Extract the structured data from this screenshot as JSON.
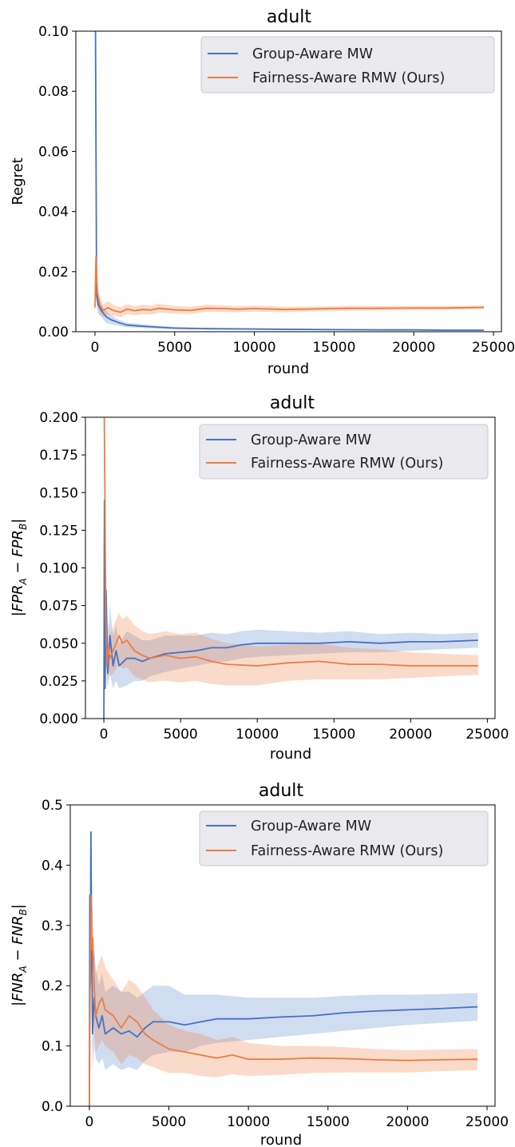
{
  "colors": {
    "series_a": "#4472c4",
    "series_b": "#ed7d41",
    "legend_bg": "#e9e9ee",
    "legend_border": "#c8c8d0"
  },
  "chart_data": [
    {
      "type": "line",
      "title": "adult",
      "xlabel": "round",
      "ylabel": "Regret",
      "xlim": [
        -1200,
        25500
      ],
      "ylim": [
        0,
        0.1
      ],
      "xticks": [
        0,
        5000,
        10000,
        15000,
        20000,
        25000
      ],
      "xtick_labels": [
        "0",
        "5000",
        "10000",
        "15000",
        "20000",
        "25000"
      ],
      "yticks": [
        0,
        0.02,
        0.04,
        0.06,
        0.08,
        0.1
      ],
      "ytick_labels": [
        "0.00",
        "0.02",
        "0.04",
        "0.06",
        "0.08",
        "0.10"
      ],
      "legend_position": "top-right",
      "grid": false,
      "series": [
        {
          "name": "Group-Aware MW",
          "x": [
            0,
            30,
            100,
            200,
            400,
            700,
            1000,
            1500,
            2000,
            3000,
            4000,
            5000,
            7000,
            10000,
            12000,
            15000,
            18000,
            20000,
            22000,
            24400
          ],
          "y": [
            0.1,
            0.1,
            0.012,
            0.009,
            0.007,
            0.005,
            0.004,
            0.003,
            0.0022,
            0.0018,
            0.0015,
            0.0012,
            0.001,
            0.0009,
            0.0008,
            0.0007,
            0.0006,
            0.0006,
            0.0005,
            0.0005
          ],
          "lower": [
            0.1,
            0.08,
            0.008,
            0.006,
            0.005,
            0.003,
            0.0025,
            0.002,
            0.0015,
            0.0012,
            0.001,
            0.0008,
            0.0007,
            0.0006,
            0.0005,
            0.0005,
            0.0004,
            0.0004,
            0.0003,
            0.0003
          ],
          "upper": [
            0.1,
            0.1,
            0.016,
            0.012,
            0.009,
            0.007,
            0.0055,
            0.004,
            0.003,
            0.0025,
            0.002,
            0.0016,
            0.0013,
            0.0012,
            0.0011,
            0.0009,
            0.0008,
            0.0008,
            0.0007,
            0.0007
          ]
        },
        {
          "name": "Fairness-Aware RMW (Ours)",
          "x": [
            0,
            60,
            150,
            300,
            500,
            800,
            1200,
            1600,
            2000,
            2500,
            3000,
            3500,
            4000,
            5000,
            6000,
            7000,
            8000,
            9000,
            10000,
            12000,
            14000,
            16000,
            18000,
            20000,
            22000,
            24400
          ],
          "y": [
            0.008,
            0.025,
            0.013,
            0.009,
            0.007,
            0.008,
            0.007,
            0.0065,
            0.0075,
            0.007,
            0.0074,
            0.0072,
            0.0078,
            0.0073,
            0.0071,
            0.0078,
            0.0077,
            0.0075,
            0.0077,
            0.0074,
            0.0076,
            0.0078,
            0.0078,
            0.0079,
            0.0079,
            0.0081
          ],
          "lower": [
            0.008,
            0.02,
            0.01,
            0.006,
            0.005,
            0.0058,
            0.0052,
            0.0048,
            0.0058,
            0.0055,
            0.0058,
            0.0057,
            0.0063,
            0.006,
            0.0059,
            0.0066,
            0.0066,
            0.0065,
            0.0067,
            0.0065,
            0.0068,
            0.007,
            0.0071,
            0.0072,
            0.0073,
            0.0075
          ],
          "upper": [
            0.008,
            0.026,
            0.016,
            0.012,
            0.009,
            0.0102,
            0.0088,
            0.0082,
            0.0092,
            0.0085,
            0.009,
            0.0087,
            0.0093,
            0.0086,
            0.0083,
            0.009,
            0.0088,
            0.0085,
            0.0087,
            0.0083,
            0.0084,
            0.0086,
            0.0085,
            0.0086,
            0.0085,
            0.0087
          ]
        }
      ]
    },
    {
      "type": "line",
      "title": "adult",
      "xlabel": "round",
      "ylabel": "|FPR_A − FPR_B|",
      "xlim": [
        -1200,
        25500
      ],
      "ylim": [
        0,
        0.2
      ],
      "xticks": [
        0,
        5000,
        10000,
        15000,
        20000,
        25000
      ],
      "xtick_labels": [
        "0",
        "5000",
        "10000",
        "15000",
        "20000",
        "25000"
      ],
      "yticks": [
        0,
        0.025,
        0.05,
        0.075,
        0.1,
        0.125,
        0.15,
        0.175,
        0.2
      ],
      "ytick_labels": [
        "0.000",
        "0.025",
        "0.050",
        "0.075",
        "0.100",
        "0.125",
        "0.150",
        "0.175",
        "0.200"
      ],
      "legend_position": "top-right",
      "grid": false,
      "series": [
        {
          "name": "Group-Aware MW",
          "x": [
            0,
            40,
            80,
            150,
            250,
            400,
            600,
            800,
            1000,
            1500,
            2000,
            2500,
            3000,
            4000,
            5000,
            6000,
            7000,
            8000,
            9000,
            10000,
            12000,
            14000,
            16000,
            18000,
            20000,
            22000,
            24400
          ],
          "y": [
            0,
            0.145,
            0.02,
            0.085,
            0.03,
            0.055,
            0.035,
            0.045,
            0.035,
            0.04,
            0.04,
            0.038,
            0.04,
            0.043,
            0.044,
            0.045,
            0.047,
            0.047,
            0.049,
            0.05,
            0.05,
            0.05,
            0.051,
            0.05,
            0.051,
            0.051,
            0.052
          ],
          "lower": [
            0,
            0.1,
            0.015,
            0.05,
            0.02,
            0.03,
            0.02,
            0.025,
            0.02,
            0.022,
            0.025,
            0.025,
            0.028,
            0.031,
            0.033,
            0.035,
            0.037,
            0.038,
            0.04,
            0.041,
            0.042,
            0.043,
            0.044,
            0.044,
            0.045,
            0.046,
            0.047
          ],
          "upper": [
            0,
            0.15,
            0.03,
            0.1,
            0.045,
            0.075,
            0.055,
            0.062,
            0.05,
            0.058,
            0.055,
            0.052,
            0.052,
            0.055,
            0.055,
            0.055,
            0.057,
            0.056,
            0.058,
            0.059,
            0.058,
            0.057,
            0.058,
            0.056,
            0.057,
            0.056,
            0.057
          ]
        },
        {
          "name": "Fairness-Aware RMW (Ours)",
          "x": [
            0,
            30,
            70,
            120,
            200,
            300,
            400,
            600,
            800,
            1000,
            1200,
            1500,
            2000,
            2500,
            3000,
            3500,
            4000,
            5000,
            6000,
            7000,
            8000,
            10000,
            12000,
            14000,
            16000,
            18000,
            20000,
            22000,
            24400
          ],
          "y": [
            0.2,
            0.2,
            0.15,
            0.07,
            0.035,
            0.048,
            0.04,
            0.045,
            0.05,
            0.055,
            0.05,
            0.052,
            0.045,
            0.042,
            0.04,
            0.041,
            0.042,
            0.04,
            0.041,
            0.038,
            0.036,
            0.035,
            0.037,
            0.038,
            0.036,
            0.036,
            0.035,
            0.035,
            0.035
          ],
          "lower": [
            0.2,
            0.2,
            0.1,
            0.04,
            0.02,
            0.03,
            0.028,
            0.03,
            0.033,
            0.037,
            0.033,
            0.034,
            0.028,
            0.026,
            0.024,
            0.025,
            0.025,
            0.024,
            0.025,
            0.023,
            0.022,
            0.022,
            0.025,
            0.026,
            0.026,
            0.026,
            0.027,
            0.028,
            0.029
          ],
          "upper": [
            0.2,
            0.2,
            0.2,
            0.1,
            0.05,
            0.065,
            0.055,
            0.06,
            0.066,
            0.07,
            0.066,
            0.068,
            0.062,
            0.058,
            0.056,
            0.057,
            0.058,
            0.056,
            0.057,
            0.053,
            0.05,
            0.048,
            0.049,
            0.05,
            0.047,
            0.046,
            0.044,
            0.043,
            0.042
          ]
        }
      ]
    },
    {
      "type": "line",
      "title": "adult",
      "xlabel": "round",
      "ylabel": "|FNR_A − FNR_B|",
      "xlim": [
        -1200,
        25500
      ],
      "ylim": [
        0,
        0.5
      ],
      "xticks": [
        0,
        5000,
        10000,
        15000,
        20000,
        25000
      ],
      "xtick_labels": [
        "0",
        "5000",
        "10000",
        "15000",
        "20000",
        "25000"
      ],
      "yticks": [
        0,
        0.1,
        0.2,
        0.3,
        0.4,
        0.5
      ],
      "ytick_labels": [
        "0.0",
        "0.1",
        "0.2",
        "0.3",
        "0.4",
        "0.5"
      ],
      "legend_position": "top-right",
      "grid": false,
      "series": [
        {
          "name": "Group-Aware MW",
          "x": [
            0,
            30,
            60,
            100,
            150,
            200,
            300,
            400,
            600,
            800,
            1000,
            1500,
            2000,
            2500,
            3000,
            3500,
            4000,
            5000,
            6000,
            7000,
            8000,
            10000,
            12000,
            14000,
            16000,
            18000,
            20000,
            22000,
            24400
          ],
          "y": [
            0,
            0.35,
            0.2,
            0.455,
            0.25,
            0.12,
            0.18,
            0.15,
            0.13,
            0.15,
            0.12,
            0.13,
            0.12,
            0.125,
            0.115,
            0.13,
            0.14,
            0.14,
            0.135,
            0.14,
            0.145,
            0.145,
            0.148,
            0.15,
            0.155,
            0.158,
            0.16,
            0.162,
            0.165
          ],
          "lower": [
            0,
            0.25,
            0.1,
            0.35,
            0.15,
            0.06,
            0.1,
            0.08,
            0.07,
            0.08,
            0.06,
            0.07,
            0.06,
            0.065,
            0.06,
            0.075,
            0.085,
            0.09,
            0.09,
            0.1,
            0.105,
            0.11,
            0.115,
            0.12,
            0.125,
            0.13,
            0.135,
            0.138,
            0.142
          ],
          "upper": [
            0,
            0.45,
            0.3,
            0.46,
            0.35,
            0.2,
            0.26,
            0.23,
            0.2,
            0.22,
            0.19,
            0.2,
            0.19,
            0.19,
            0.18,
            0.19,
            0.2,
            0.2,
            0.185,
            0.185,
            0.185,
            0.18,
            0.18,
            0.18,
            0.183,
            0.185,
            0.185,
            0.186,
            0.188
          ]
        },
        {
          "name": "Fairness-Aware RMW (Ours)",
          "x": [
            0,
            50,
            100,
            150,
            200,
            300,
            400,
            600,
            800,
            1000,
            1500,
            2000,
            2500,
            3000,
            3500,
            4000,
            5000,
            6000,
            7000,
            8000,
            9000,
            10000,
            12000,
            14000,
            16000,
            18000,
            20000,
            22000,
            24400
          ],
          "y": [
            0,
            0.2,
            0.35,
            0.26,
            0.28,
            0.2,
            0.15,
            0.17,
            0.18,
            0.16,
            0.15,
            0.13,
            0.15,
            0.14,
            0.12,
            0.11,
            0.095,
            0.09,
            0.085,
            0.08,
            0.085,
            0.078,
            0.078,
            0.08,
            0.079,
            0.077,
            0.076,
            0.077,
            0.078
          ],
          "lower": [
            0,
            0.1,
            0.25,
            0.18,
            0.2,
            0.13,
            0.09,
            0.1,
            0.11,
            0.1,
            0.09,
            0.07,
            0.085,
            0.08,
            0.07,
            0.065,
            0.055,
            0.055,
            0.05,
            0.048,
            0.053,
            0.05,
            0.052,
            0.055,
            0.056,
            0.056,
            0.056,
            0.058,
            0.06
          ],
          "upper": [
            0,
            0.3,
            0.36,
            0.34,
            0.33,
            0.27,
            0.22,
            0.24,
            0.25,
            0.23,
            0.21,
            0.19,
            0.21,
            0.2,
            0.18,
            0.16,
            0.135,
            0.125,
            0.12,
            0.11,
            0.115,
            0.105,
            0.1,
            0.1,
            0.098,
            0.095,
            0.093,
            0.094,
            0.095
          ]
        }
      ]
    }
  ]
}
